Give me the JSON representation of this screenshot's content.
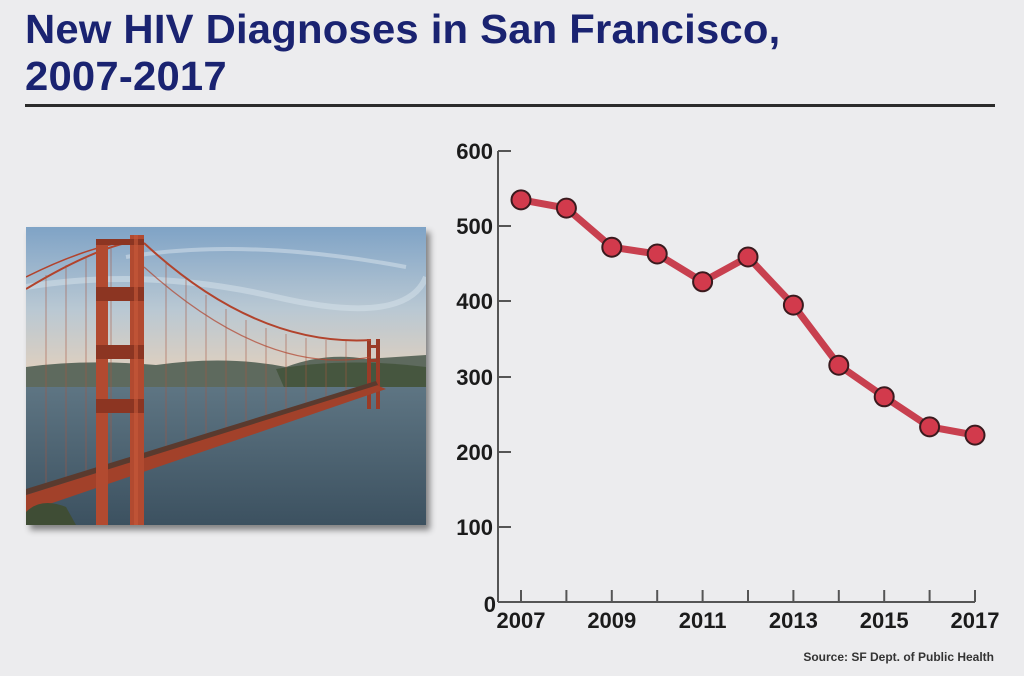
{
  "header": {
    "title_line1": "New HIV Diagnoses in San Francisco,",
    "title_line2": "2007-2017"
  },
  "photo": {
    "subject": "Golden Gate Bridge",
    "description": "Photograph of the Golden Gate Bridge over San Francisco Bay"
  },
  "source": "Source: SF Dept. of Public Health",
  "colors": {
    "title": "#1a2371",
    "line": "#c8404f",
    "marker_fill": "#d23a4c",
    "marker_stroke": "#3a1a1e",
    "background": "#ececee",
    "axis": "#555555"
  },
  "chart_data": {
    "type": "line",
    "title": "New HIV Diagnoses in San Francisco, 2007-2017",
    "xlabel": "",
    "ylabel": "",
    "x": [
      2007,
      2008,
      2009,
      2010,
      2011,
      2012,
      2013,
      2014,
      2015,
      2016,
      2017
    ],
    "series": [
      {
        "name": "New HIV Diagnoses",
        "values": [
          535,
          524,
          472,
          463,
          426,
          459,
          395,
          315,
          273,
          233,
          222
        ]
      }
    ],
    "ylim": [
      0,
      600
    ],
    "yticks": [
      0,
      100,
      200,
      300,
      400,
      500,
      600
    ],
    "xtick_labels": [
      "2007",
      "2009",
      "2011",
      "2013",
      "2015",
      "2017"
    ],
    "grid": false,
    "legend": "none",
    "annotation": "Source: SF Dept. of Public Health"
  }
}
